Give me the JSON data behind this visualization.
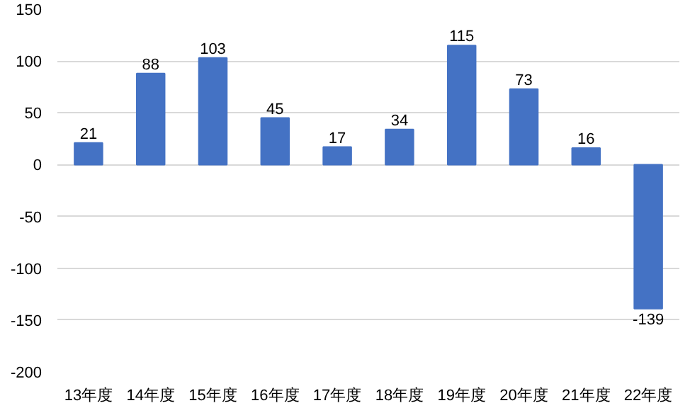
{
  "chart_data": {
    "type": "bar",
    "categories": [
      "13年度",
      "14年度",
      "15年度",
      "16年度",
      "17年度",
      "18年度",
      "19年度",
      "20年度",
      "21年度",
      "22年度"
    ],
    "values": [
      21,
      88,
      103,
      45,
      17,
      34,
      115,
      73,
      16,
      -139
    ],
    "color": "#4472c4",
    "ylim": [
      -200,
      150
    ],
    "yticks": [
      -200,
      -150,
      -100,
      -50,
      0,
      50,
      100,
      150
    ],
    "grid": "y",
    "data_labels": true
  }
}
